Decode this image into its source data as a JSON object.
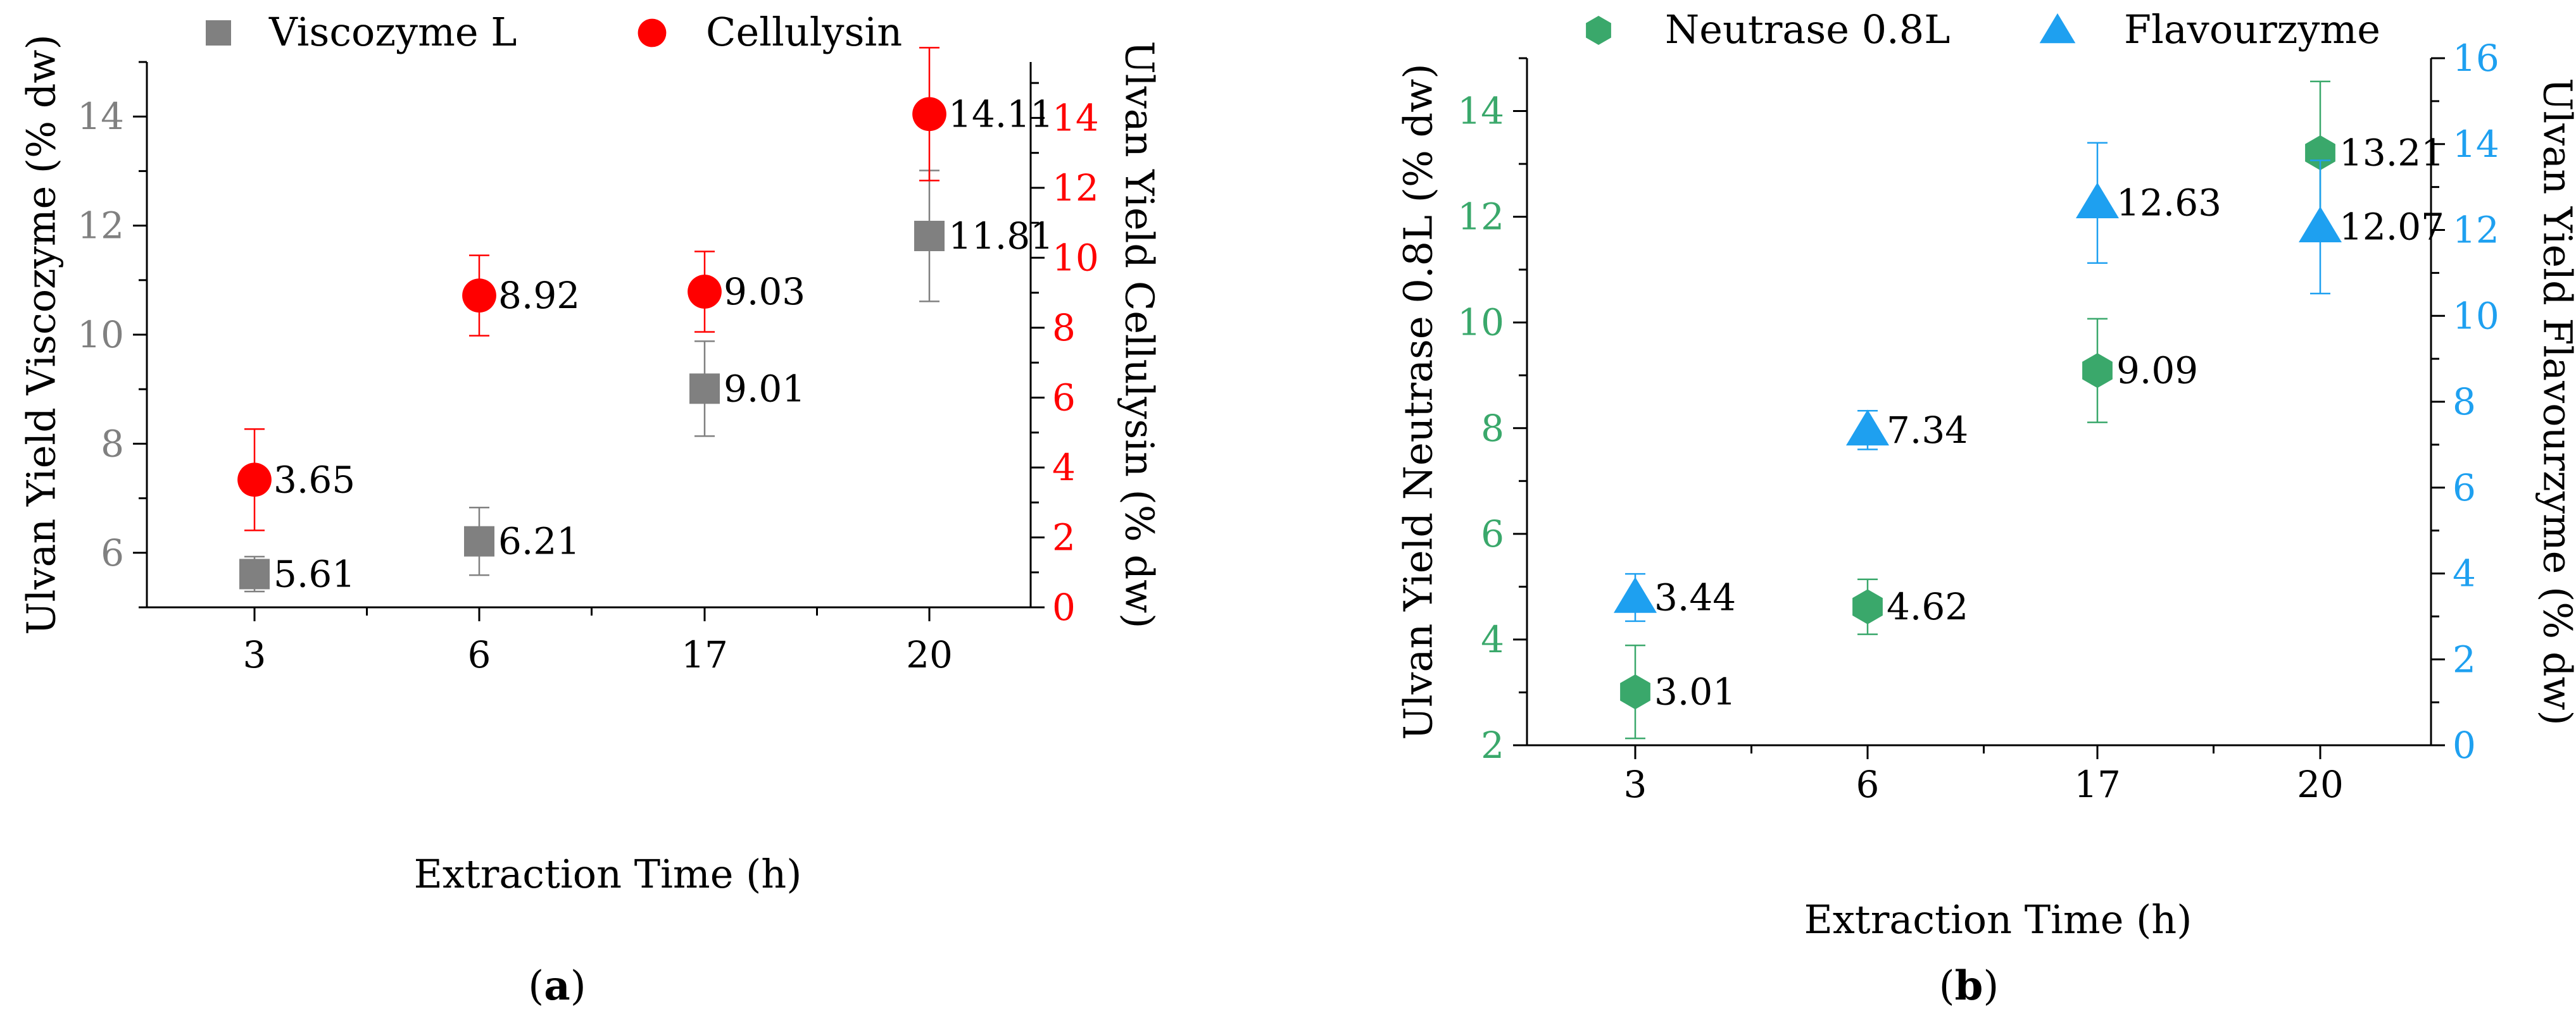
{
  "chart_data": [
    {
      "type": "scatter",
      "panel_label": "(a)",
      "panel_letter": "a",
      "xlabel": "Extraction Time (h)",
      "categories": [
        "3",
        "6",
        "17",
        "20"
      ],
      "y_left": {
        "label": "Ulvan Yield Viscozyme (% dw)",
        "ylim": [
          5,
          15
        ],
        "ticks": [
          6,
          8,
          10,
          12,
          14
        ],
        "color": "#808080"
      },
      "y_right": {
        "label": "Ulvan Yield Cellulysin (% dw)",
        "ylim": [
          0,
          15.6
        ],
        "ticks": [
          0,
          2,
          4,
          6,
          8,
          10,
          12,
          14
        ],
        "color": "#ff0000"
      },
      "series": [
        {
          "name": "Viscozyme L",
          "axis": "left",
          "marker": "square",
          "color": "#808080",
          "values": [
            5.61,
            6.21,
            9.01,
            11.81
          ],
          "errors": [
            0.32,
            0.62,
            0.87,
            1.2
          ],
          "labels": [
            "5.61",
            "6.21",
            "9.01",
            "11.81"
          ]
        },
        {
          "name": "Cellulysin",
          "axis": "right",
          "marker": "circle",
          "color": "#ff0000",
          "values": [
            3.65,
            8.92,
            9.03,
            14.11
          ],
          "errors": [
            1.45,
            1.15,
            1.15,
            1.9
          ],
          "labels": [
            "3.65",
            "8.92",
            "9.03",
            "14.11"
          ]
        }
      ]
    },
    {
      "type": "scatter",
      "panel_label": "(b)",
      "panel_letter": "b",
      "xlabel": "Extraction Time (h)",
      "categories": [
        "3",
        "6",
        "17",
        "20"
      ],
      "y_left": {
        "label": "Ulvan Yield Neutrase 0.8L (% dw)",
        "ylim": [
          2,
          15
        ],
        "ticks": [
          2,
          4,
          6,
          8,
          10,
          12,
          14
        ],
        "color": "#3aa86b"
      },
      "y_right": {
        "label": "Ulvan Yield Flavourzyme (% dw)",
        "ylim": [
          0,
          16
        ],
        "ticks": [
          0,
          2,
          4,
          6,
          8,
          10,
          12,
          14,
          16
        ],
        "color": "#1ea0f0"
      },
      "series": [
        {
          "name": "Neutrase 0.8L",
          "axis": "left",
          "marker": "hexagon",
          "color": "#3aa86b",
          "values": [
            3.01,
            4.62,
            9.09,
            13.21
          ],
          "errors": [
            0.88,
            0.52,
            0.98,
            1.35
          ],
          "labels": [
            "3.01",
            "4.62",
            "9.09",
            "13.21"
          ]
        },
        {
          "name": "Flavourzyme",
          "axis": "right",
          "marker": "triangle",
          "color": "#1ea0f0",
          "values": [
            3.44,
            7.34,
            12.63,
            12.07
          ],
          "errors": [
            0.55,
            0.45,
            1.4,
            1.55
          ],
          "labels": [
            "3.44",
            "7.34",
            "12.63",
            "12.07"
          ]
        }
      ]
    }
  ]
}
